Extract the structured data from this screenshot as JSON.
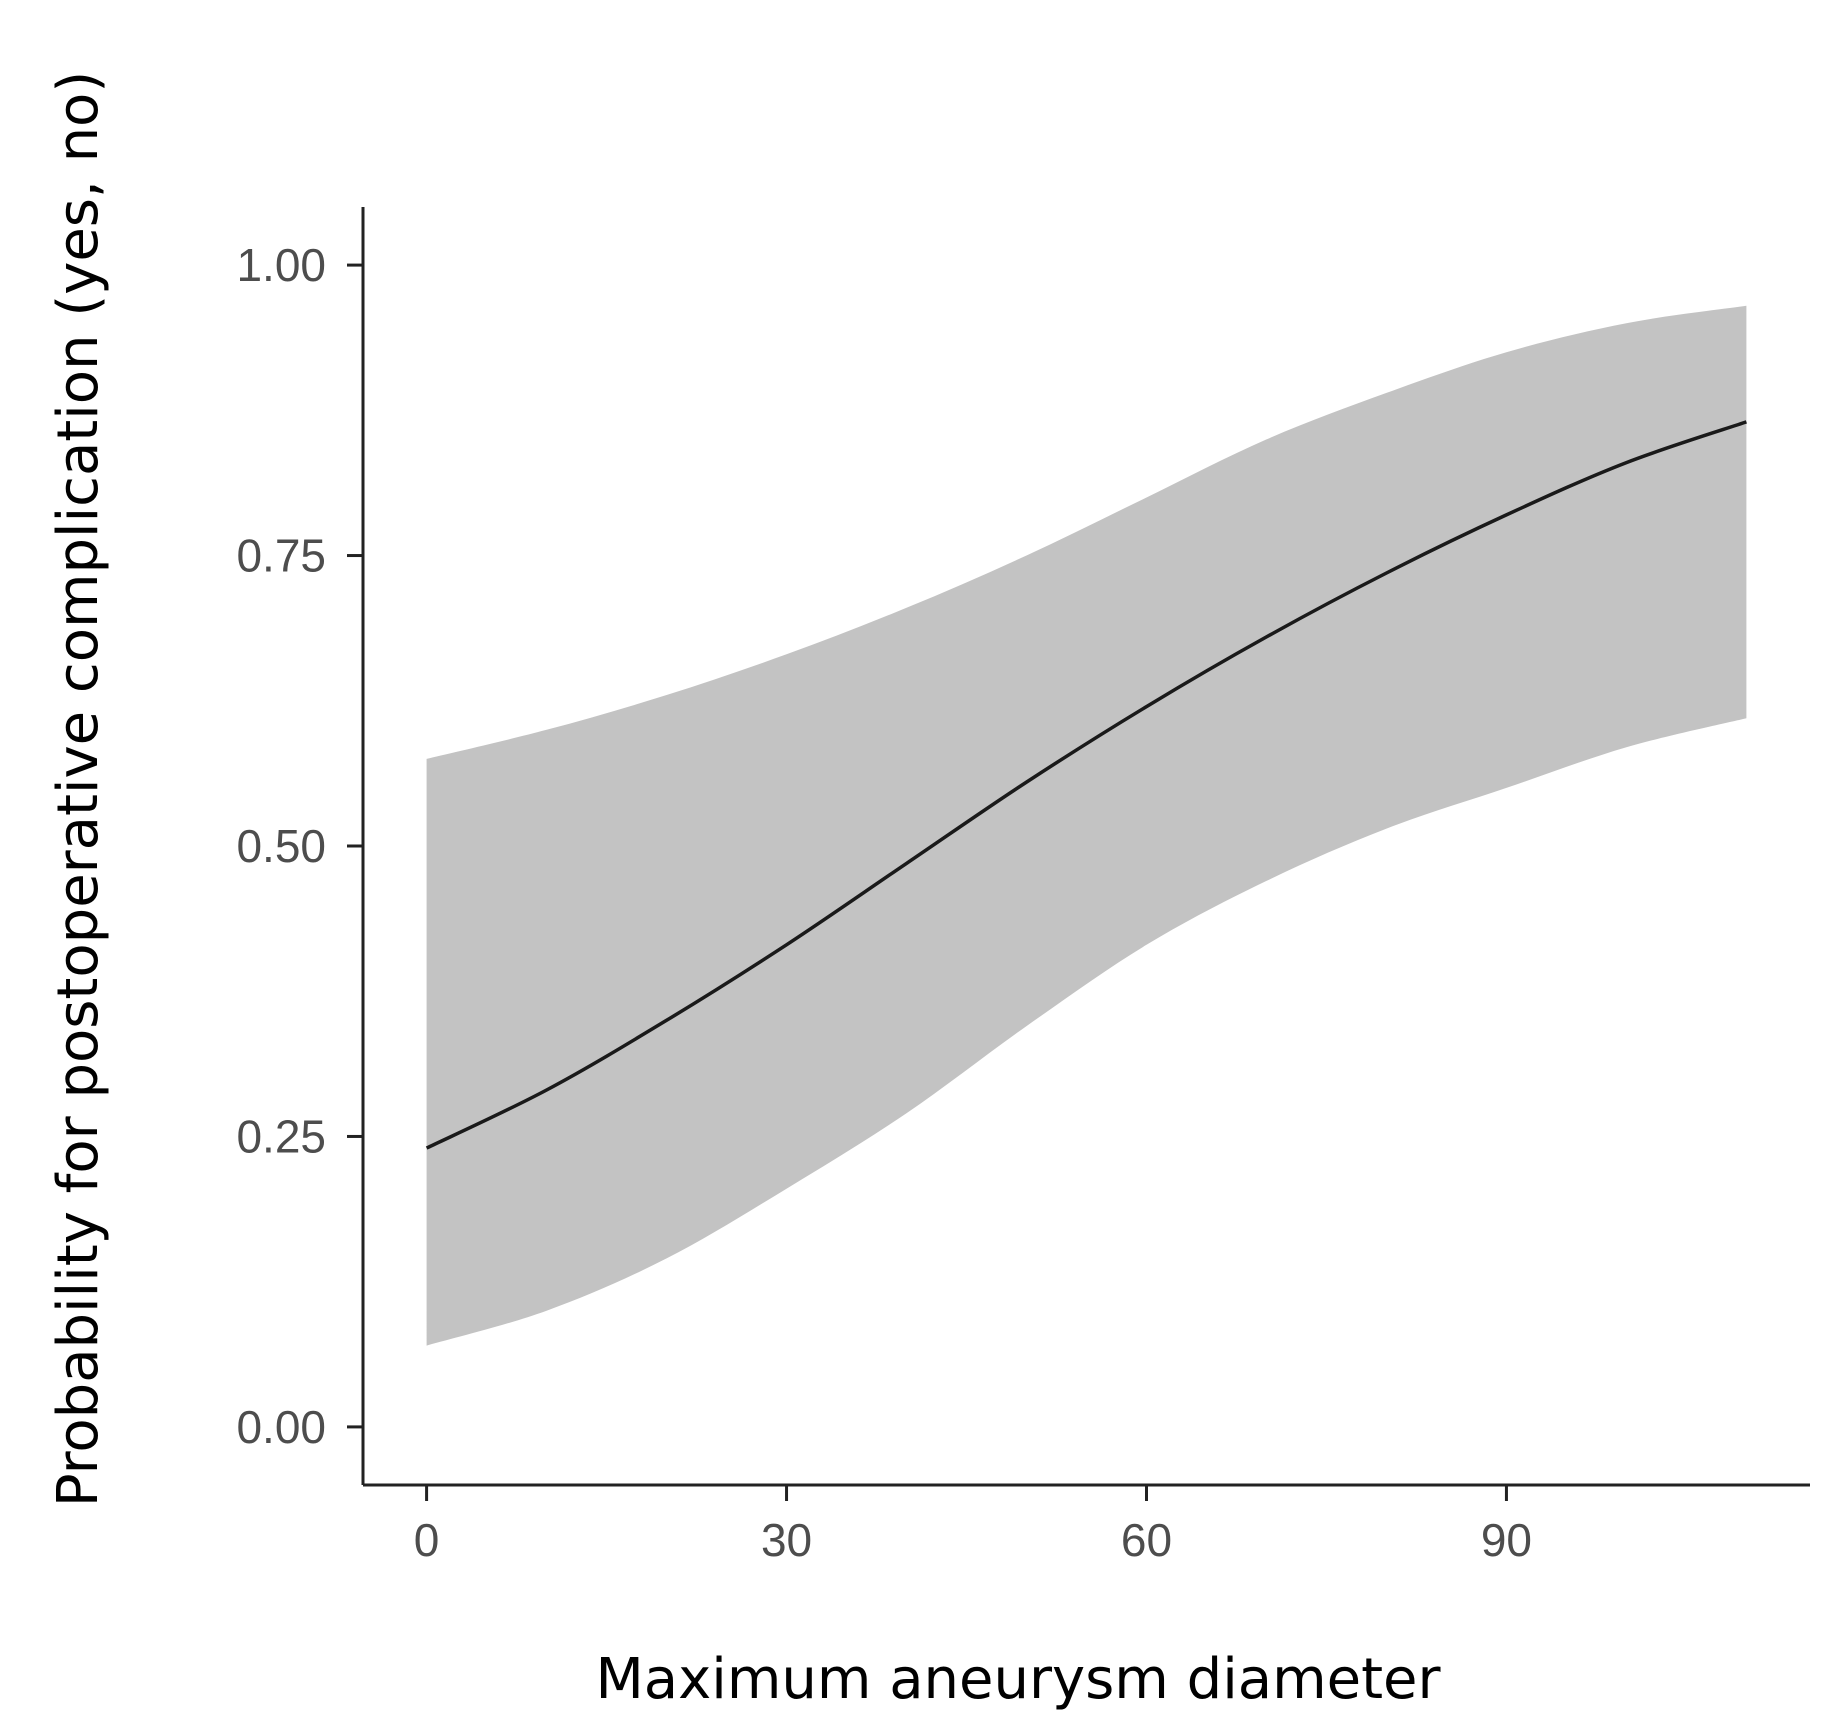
{
  "chart_data": {
    "type": "line",
    "title": "",
    "xlabel": "Maximum aneurysm diameter",
    "ylabel": "Probability for postoperative complication (yes, no)",
    "xlim": [
      -5.3,
      115.3
    ],
    "ylim": [
      -0.05,
      1.05
    ],
    "x_ticks": [
      0,
      30,
      60,
      90
    ],
    "x_tick_labels": [
      "0",
      "30",
      "60",
      "90"
    ],
    "y_ticks": [
      0,
      0.25,
      0.5,
      0.75,
      1.0
    ],
    "y_tick_labels": [
      "0.00",
      "0.25",
      "0.50",
      "0.75",
      "1.00"
    ],
    "grid": false,
    "legend": "none",
    "series": [
      {
        "x": [
          0,
          10,
          20,
          30,
          40,
          50,
          60,
          70,
          80,
          90,
          100,
          110
        ],
        "y": [
          0.24,
          0.29,
          0.35,
          0.415,
          0.485,
          0.555,
          0.62,
          0.68,
          0.735,
          0.785,
          0.83,
          0.865
        ],
        "ci_lower": [
          0.07,
          0.1,
          0.145,
          0.205,
          0.27,
          0.345,
          0.415,
          0.47,
          0.515,
          0.55,
          0.585,
          0.61
        ],
        "ci_upper": [
          0.575,
          0.6,
          0.63,
          0.665,
          0.705,
          0.75,
          0.8,
          0.85,
          0.89,
          0.925,
          0.95,
          0.965
        ]
      }
    ],
    "colors": {
      "line": "#1a1a1a",
      "band": "#c3c3c3",
      "axis": "#222222",
      "tick_text": "#4d4d4d"
    }
  }
}
